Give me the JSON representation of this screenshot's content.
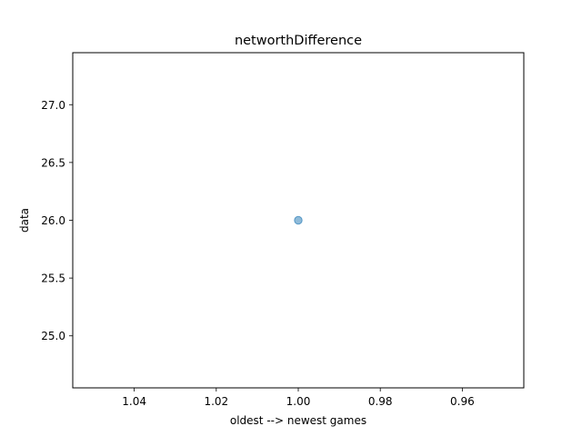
{
  "chart_data": {
    "type": "scatter",
    "title": "networthDifference",
    "xlabel": "oldest --> newest games",
    "ylabel": "data",
    "x_inverted": true,
    "xlim": [
      1.055,
      0.945
    ],
    "ylim": [
      24.55,
      27.45
    ],
    "xticks": [
      1.04,
      1.02,
      1.0,
      0.98,
      0.96
    ],
    "xtick_labels": [
      "1.04",
      "1.02",
      "1.00",
      "0.98",
      "0.96"
    ],
    "yticks": [
      25.0,
      25.5,
      26.0,
      26.5,
      27.0
    ],
    "ytick_labels": [
      "25.0",
      "25.5",
      "26.0",
      "26.5",
      "27.0"
    ],
    "grid": false,
    "series": [
      {
        "points": [
          {
            "x": 1.0,
            "y": 26.0
          }
        ],
        "color": "#1f77b4",
        "alpha": 0.5
      }
    ]
  }
}
